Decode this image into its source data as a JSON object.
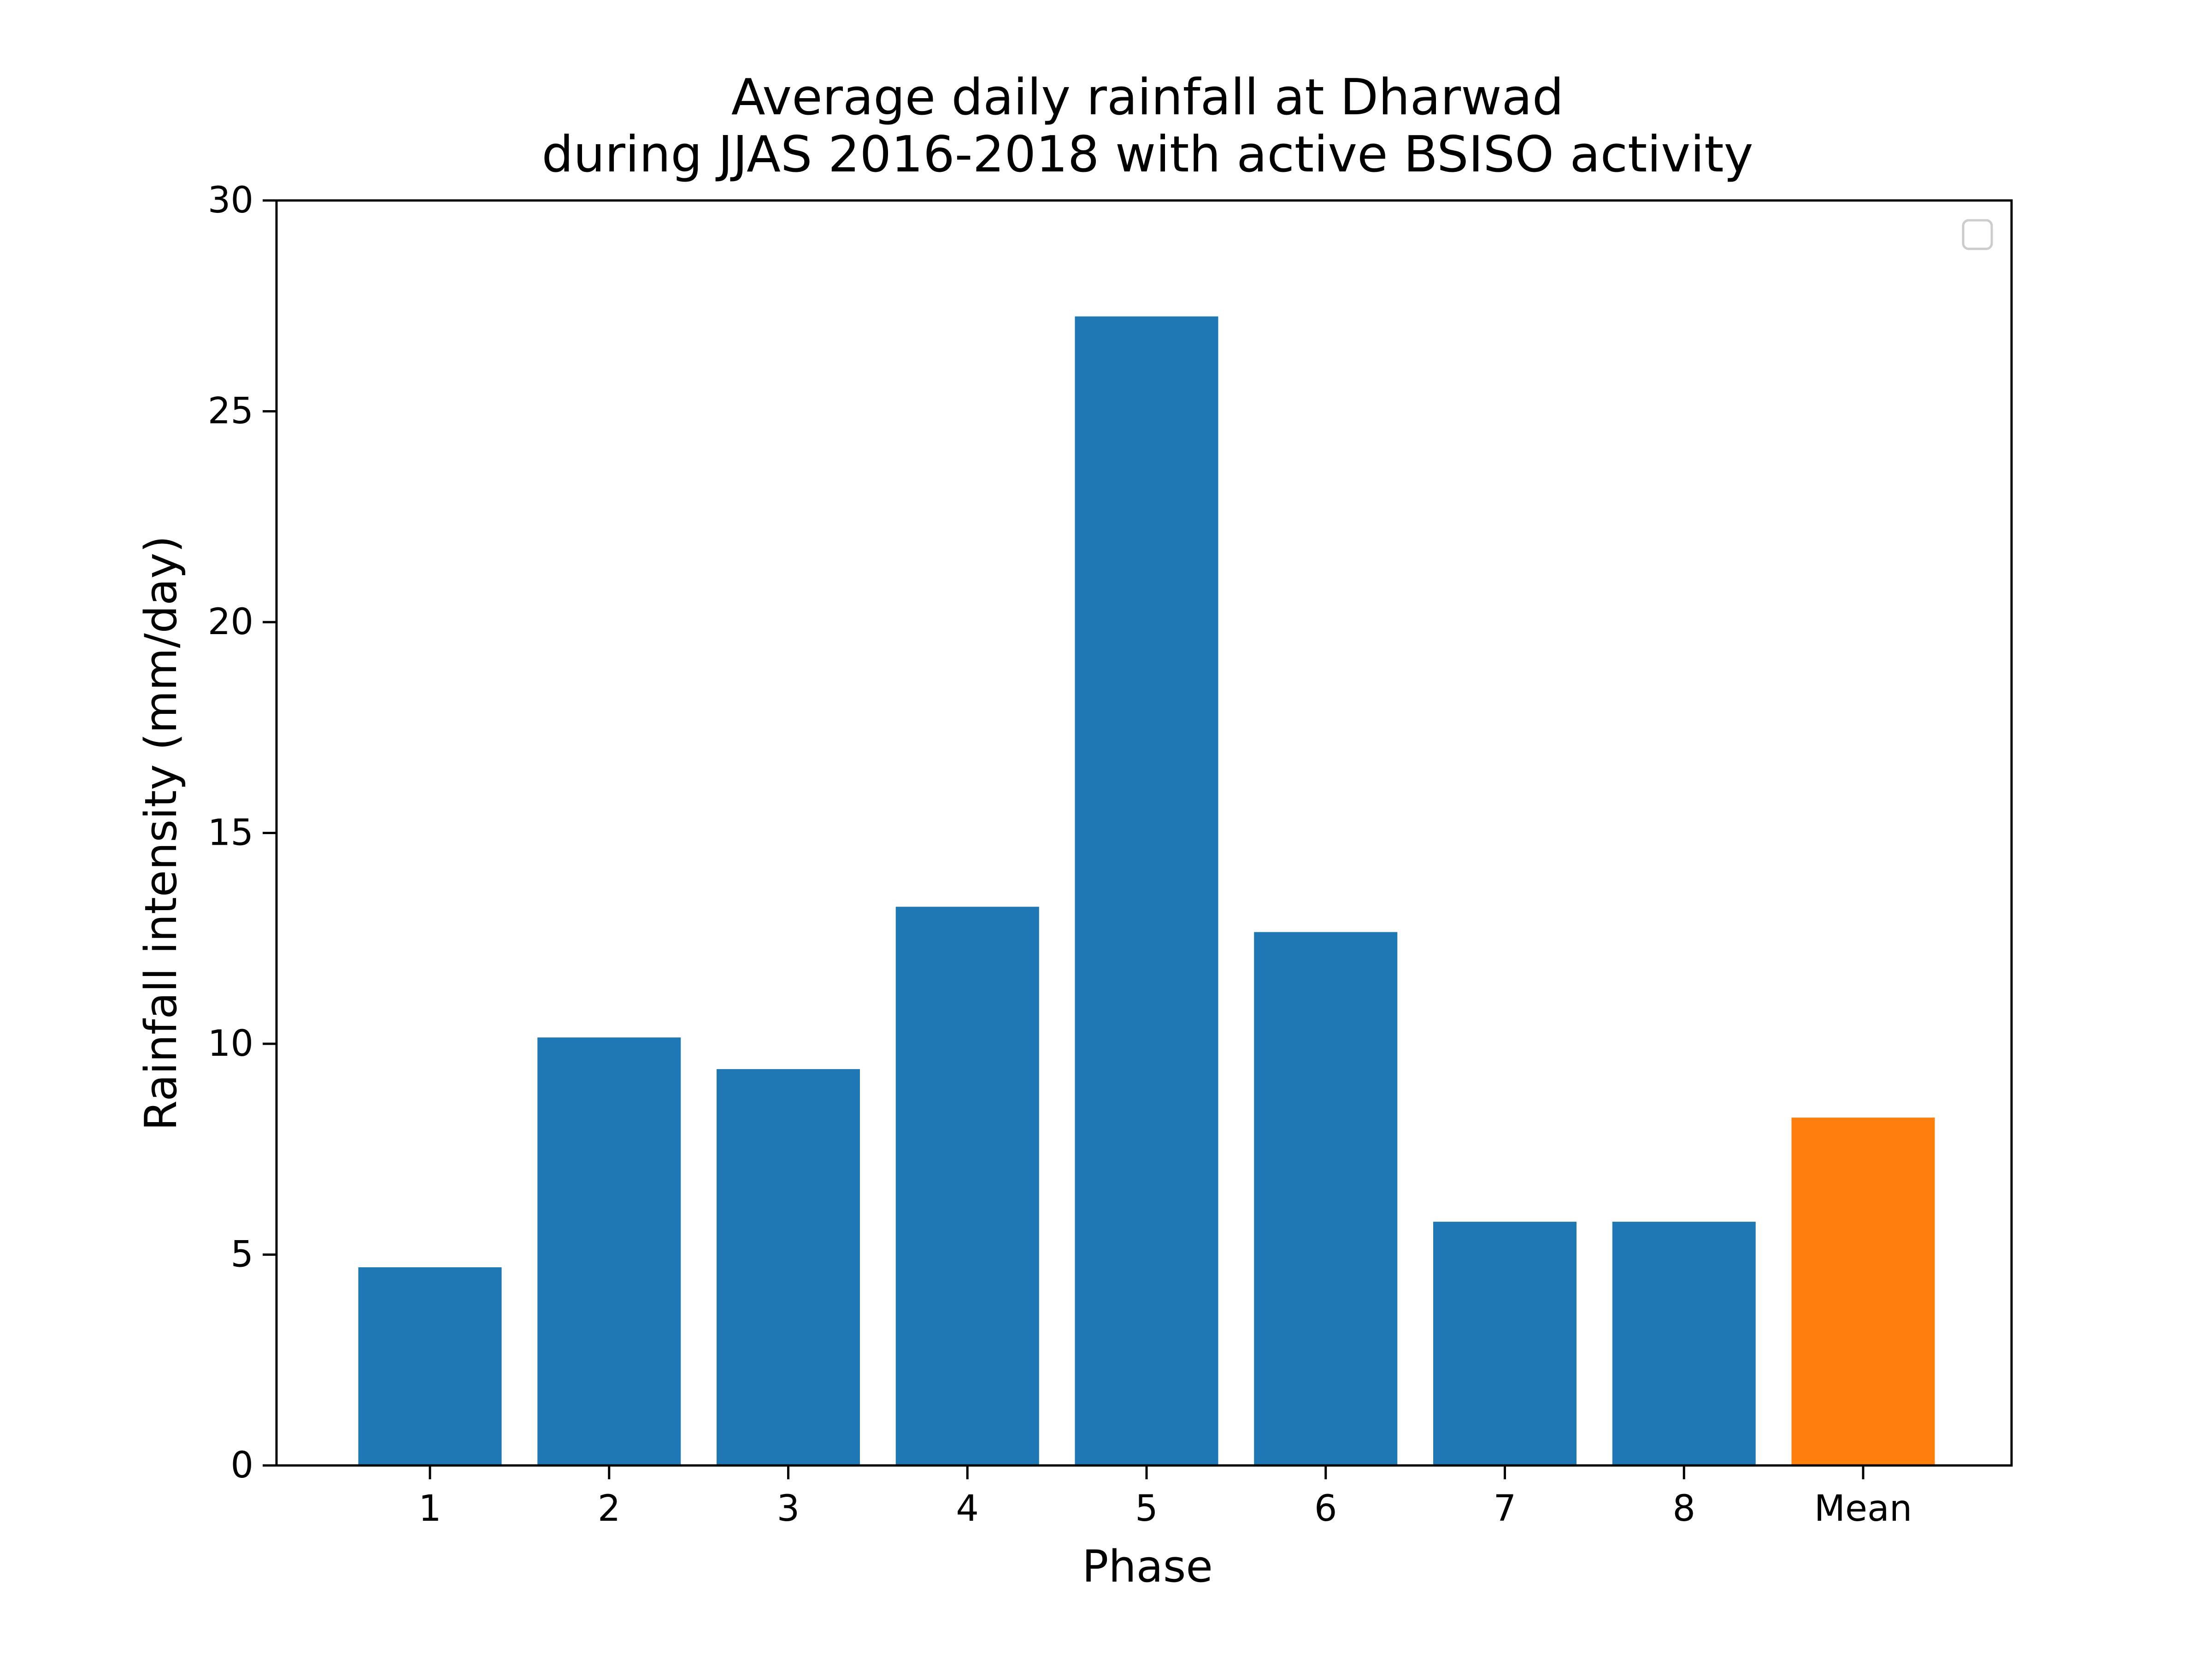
{
  "chart_data": {
    "type": "bar",
    "title": "Average daily rainfall at Dharwad\nduring JJAS 2016-2018 with active BSISO activity",
    "title_lines": [
      "Average daily rainfall at Dharwad",
      "during JJAS 2016-2018 with active BSISO activity"
    ],
    "xlabel": "Phase",
    "ylabel": "Rainfall intensity (mm/day)",
    "categories": [
      "1",
      "2",
      "3",
      "4",
      "5",
      "6",
      "7",
      "8",
      "Mean"
    ],
    "values": [
      4.7,
      10.15,
      9.4,
      13.25,
      27.25,
      12.65,
      5.78,
      5.78,
      8.25
    ],
    "bar_colors": [
      "#1f77b4",
      "#1f77b4",
      "#1f77b4",
      "#1f77b4",
      "#1f77b4",
      "#1f77b4",
      "#1f77b4",
      "#1f77b4",
      "#ff7f0e"
    ],
    "ylim": [
      0,
      30
    ],
    "yticks": [
      0,
      5,
      10,
      15,
      20,
      25,
      30
    ],
    "grid": false,
    "legend": {
      "placement": "top-right",
      "entries": []
    }
  }
}
